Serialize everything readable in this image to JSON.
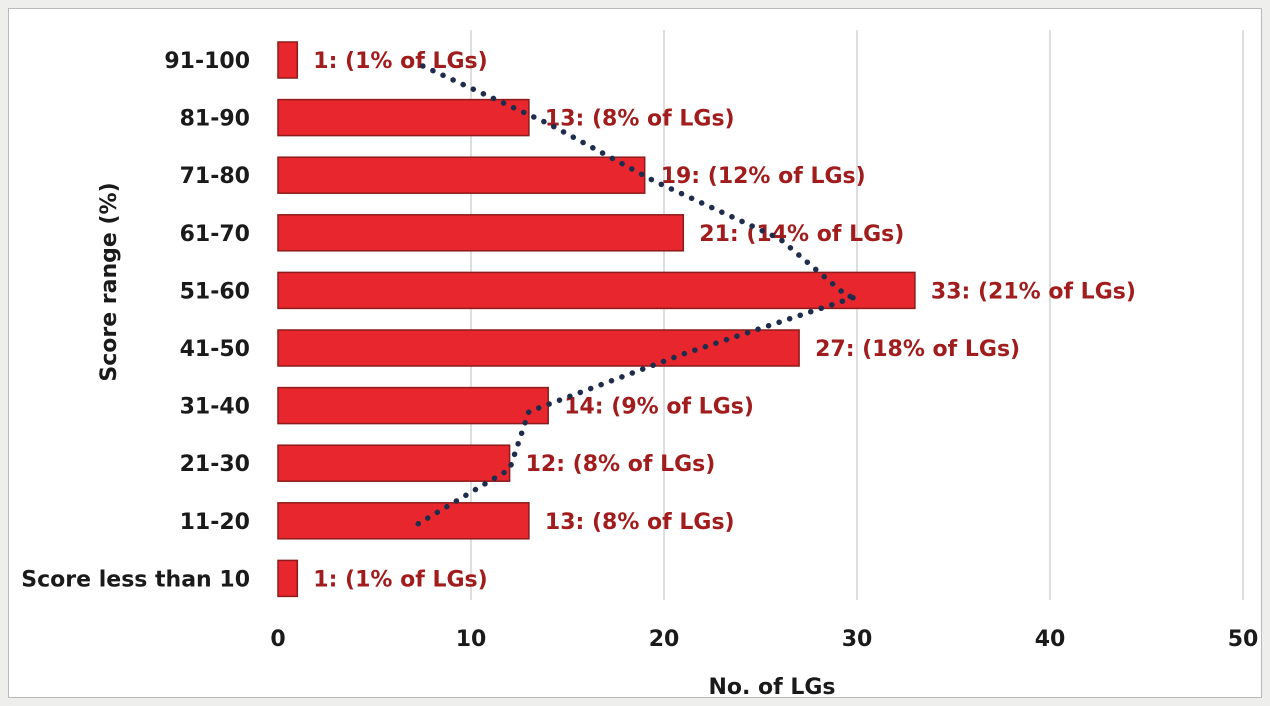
{
  "chart_data": {
    "type": "bar",
    "orientation": "horizontal",
    "categories": [
      "91-100",
      "81-90",
      "71-80",
      "61-70",
      "51-60",
      "41-50",
      "31-40",
      "21-30",
      "11-20",
      "Score less than 10"
    ],
    "values": [
      1,
      13,
      19,
      21,
      33,
      27,
      14,
      12,
      13,
      1
    ],
    "data_labels": [
      "1: (1% of LGs)",
      "13: (8% of LGs)",
      "19: (12% of LGs)",
      "21: (14% of LGs)",
      "33: (21% of LGs)",
      "27: (18% of LGs)",
      "14: (9% of LGs)",
      "12: (8% of LGs)",
      "13: (8% of LGs)",
      "1: (1% of LGs)"
    ],
    "title": "",
    "xlabel": "No. of LGs",
    "ylabel": "Score range (%)",
    "xlim": [
      0,
      50
    ],
    "xticks": [
      0,
      10,
      20,
      30,
      40,
      50
    ],
    "grid": "vertical",
    "legend": "none",
    "trendline": {
      "style": "dotted",
      "color": "#1f2d4d",
      "points": [
        {
          "category": "91-100",
          "value": 7.5
        },
        {
          "category": "81-90",
          "value": 14
        },
        {
          "category": "71-80",
          "value": 19.5
        },
        {
          "category": "61-70",
          "value": 26
        },
        {
          "category": "51-60",
          "value": 29.5
        },
        {
          "category": "51-60",
          "value": 30
        },
        {
          "category": "41-50",
          "value": 21
        },
        {
          "category": "31-40",
          "value": 13
        },
        {
          "category": "21-30",
          "value": 12
        },
        {
          "category": "11-20",
          "value": 7
        }
      ]
    },
    "colors": {
      "bar_fill": "#e8262d",
      "bar_stroke": "#8e1b1b",
      "label_text": "#a11d1d",
      "grid": "#d4d4d4",
      "text": "#1a1a1a"
    }
  }
}
